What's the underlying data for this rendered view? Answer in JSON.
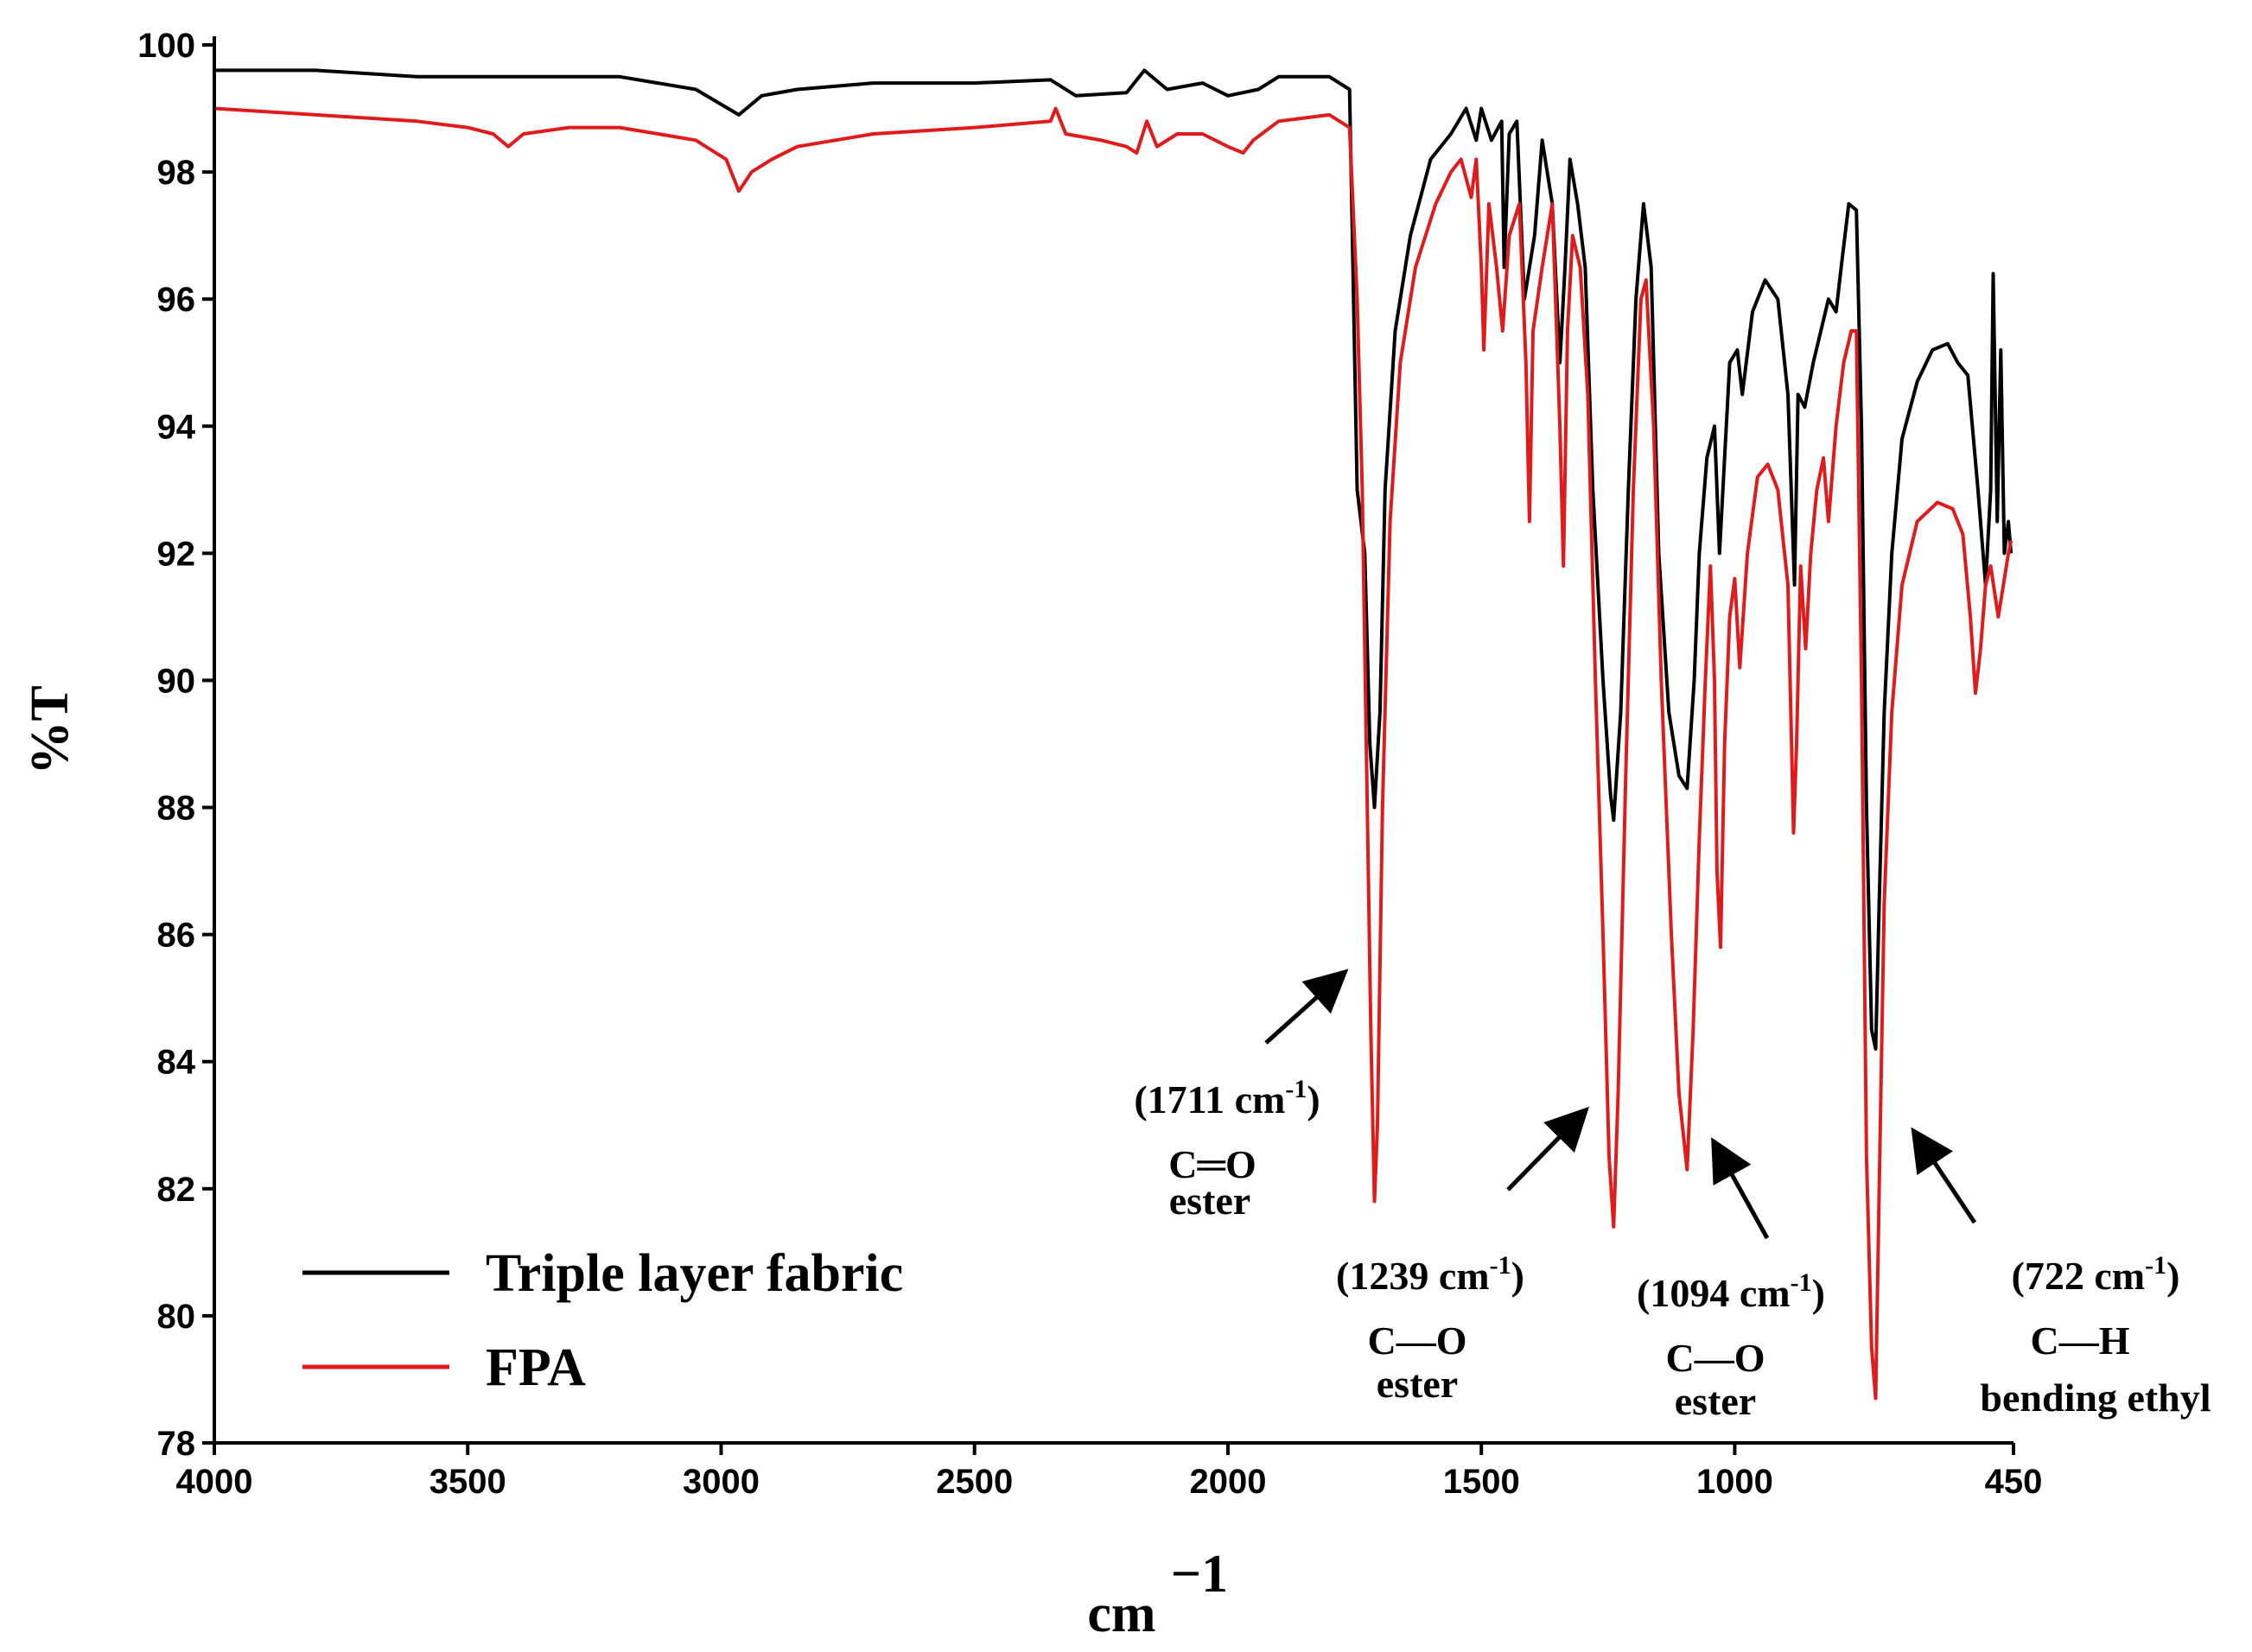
{
  "chart_data": {
    "type": "line",
    "xlabel": "cm",
    "xlabel_sup": "−1",
    "ylabel": "%T",
    "xlim": [
      4000,
      450
    ],
    "ylim": [
      78,
      100
    ],
    "x_ticks": [
      4000,
      3500,
      3000,
      2500,
      2000,
      1500,
      1000,
      450
    ],
    "x_tick_labels": [
      "4000",
      "3500",
      "3000",
      "2500",
      "2000",
      "1500",
      "1000",
      "450"
    ],
    "y_ticks": [
      78,
      80,
      82,
      84,
      86,
      88,
      90,
      92,
      94,
      96,
      98,
      100
    ],
    "y_tick_labels": [
      "78",
      "80",
      "82",
      "84",
      "86",
      "88",
      "90",
      "92",
      "94",
      "96",
      "98",
      "100"
    ],
    "grid": false,
    "legend_position": "bottom-left",
    "series": [
      {
        "name": "Triple layer fabric",
        "color": "#000000",
        "points": [
          [
            4000,
            99.6
          ],
          [
            3800,
            99.6
          ],
          [
            3600,
            99.5
          ],
          [
            3400,
            99.5
          ],
          [
            3200,
            99.5
          ],
          [
            3050,
            99.3
          ],
          [
            2965,
            98.9
          ],
          [
            2920,
            99.2
          ],
          [
            2850,
            99.3
          ],
          [
            2700,
            99.4
          ],
          [
            2500,
            99.4
          ],
          [
            2350,
            99.45
          ],
          [
            2300,
            99.2
          ],
          [
            2200,
            99.25
          ],
          [
            2165,
            99.6
          ],
          [
            2120,
            99.3
          ],
          [
            2050,
            99.4
          ],
          [
            2000,
            99.2
          ],
          [
            1940,
            99.3
          ],
          [
            1900,
            99.5
          ],
          [
            1800,
            99.5
          ],
          [
            1760,
            99.3
          ],
          [
            1745,
            93.0
          ],
          [
            1730,
            92.0
          ],
          [
            1720,
            89.0
          ],
          [
            1711,
            88.0
          ],
          [
            1700,
            89.5
          ],
          [
            1690,
            93.0
          ],
          [
            1670,
            95.5
          ],
          [
            1640,
            97.0
          ],
          [
            1600,
            98.2
          ],
          [
            1560,
            98.6
          ],
          [
            1530,
            99.0
          ],
          [
            1510,
            98.5
          ],
          [
            1500,
            99.0
          ],
          [
            1480,
            98.5
          ],
          [
            1460,
            98.8
          ],
          [
            1455,
            96.5
          ],
          [
            1445,
            98.6
          ],
          [
            1430,
            98.8
          ],
          [
            1415,
            96.0
          ],
          [
            1395,
            97.0
          ],
          [
            1380,
            98.5
          ],
          [
            1360,
            97.5
          ],
          [
            1345,
            95.0
          ],
          [
            1335,
            96.5
          ],
          [
            1325,
            98.2
          ],
          [
            1310,
            97.5
          ],
          [
            1295,
            96.5
          ],
          [
            1280,
            93.0
          ],
          [
            1260,
            90.0
          ],
          [
            1245,
            88.2
          ],
          [
            1239,
            87.8
          ],
          [
            1225,
            89.5
          ],
          [
            1210,
            93.0
          ],
          [
            1195,
            96.0
          ],
          [
            1180,
            97.5
          ],
          [
            1165,
            96.5
          ],
          [
            1150,
            92.0
          ],
          [
            1130,
            89.5
          ],
          [
            1110,
            88.5
          ],
          [
            1094,
            88.3
          ],
          [
            1080,
            90.0
          ],
          [
            1070,
            92.0
          ],
          [
            1055,
            93.5
          ],
          [
            1040,
            94.0
          ],
          [
            1030,
            92.0
          ],
          [
            1020,
            93.5
          ],
          [
            1010,
            95.0
          ],
          [
            995,
            95.2
          ],
          [
            985,
            94.5
          ],
          [
            965,
            95.8
          ],
          [
            940,
            96.3
          ],
          [
            915,
            96.0
          ],
          [
            895,
            94.5
          ],
          [
            882,
            91.5
          ],
          [
            875,
            94.5
          ],
          [
            862,
            94.3
          ],
          [
            845,
            95.0
          ],
          [
            830,
            95.5
          ],
          [
            815,
            96.0
          ],
          [
            800,
            95.8
          ],
          [
            790,
            96.5
          ],
          [
            775,
            97.5
          ],
          [
            760,
            97.4
          ],
          [
            750,
            94.0
          ],
          [
            740,
            88.0
          ],
          [
            730,
            84.5
          ],
          [
            722,
            84.2
          ],
          [
            715,
            86.5
          ],
          [
            705,
            89.5
          ],
          [
            690,
            92.0
          ],
          [
            670,
            93.8
          ],
          [
            640,
            94.7
          ],
          [
            610,
            95.2
          ],
          [
            580,
            95.3
          ],
          [
            560,
            95.0
          ],
          [
            540,
            94.8
          ],
          [
            520,
            93.0
          ],
          [
            505,
            91.5
          ],
          [
            495,
            93.0
          ],
          [
            490,
            96.4
          ],
          [
            482,
            92.5
          ],
          [
            475,
            95.2
          ],
          [
            468,
            92.0
          ],
          [
            460,
            92.5
          ],
          [
            455,
            92.0
          ]
        ]
      },
      {
        "name": "FPA",
        "color": "#e01b1b",
        "points": [
          [
            4000,
            99.0
          ],
          [
            3800,
            98.9
          ],
          [
            3600,
            98.8
          ],
          [
            3500,
            98.7
          ],
          [
            3450,
            98.6
          ],
          [
            3420,
            98.4
          ],
          [
            3390,
            98.6
          ],
          [
            3300,
            98.7
          ],
          [
            3200,
            98.7
          ],
          [
            3050,
            98.5
          ],
          [
            2990,
            98.2
          ],
          [
            2965,
            97.7
          ],
          [
            2940,
            98.0
          ],
          [
            2900,
            98.2
          ],
          [
            2850,
            98.4
          ],
          [
            2700,
            98.6
          ],
          [
            2500,
            98.7
          ],
          [
            2350,
            98.8
          ],
          [
            2340,
            99.0
          ],
          [
            2320,
            98.6
          ],
          [
            2250,
            98.5
          ],
          [
            2200,
            98.4
          ],
          [
            2180,
            98.3
          ],
          [
            2160,
            98.8
          ],
          [
            2140,
            98.4
          ],
          [
            2100,
            98.6
          ],
          [
            2050,
            98.6
          ],
          [
            2000,
            98.4
          ],
          [
            1970,
            98.3
          ],
          [
            1950,
            98.5
          ],
          [
            1900,
            98.8
          ],
          [
            1800,
            98.9
          ],
          [
            1760,
            98.7
          ],
          [
            1745,
            96.0
          ],
          [
            1735,
            93.0
          ],
          [
            1725,
            88.0
          ],
          [
            1718,
            84.5
          ],
          [
            1711,
            81.8
          ],
          [
            1705,
            83.0
          ],
          [
            1695,
            88.0
          ],
          [
            1680,
            92.5
          ],
          [
            1660,
            95.0
          ],
          [
            1630,
            96.5
          ],
          [
            1590,
            97.5
          ],
          [
            1560,
            98.0
          ],
          [
            1540,
            98.2
          ],
          [
            1520,
            97.6
          ],
          [
            1510,
            98.2
          ],
          [
            1500,
            96.5
          ],
          [
            1495,
            95.2
          ],
          [
            1485,
            97.5
          ],
          [
            1470,
            96.5
          ],
          [
            1458,
            95.5
          ],
          [
            1445,
            97.0
          ],
          [
            1425,
            97.5
          ],
          [
            1412,
            95.0
          ],
          [
            1405,
            92.5
          ],
          [
            1398,
            95.5
          ],
          [
            1380,
            96.5
          ],
          [
            1360,
            97.5
          ],
          [
            1345,
            94.0
          ],
          [
            1338,
            91.8
          ],
          [
            1330,
            95.5
          ],
          [
            1320,
            97.0
          ],
          [
            1305,
            96.5
          ],
          [
            1290,
            94.5
          ],
          [
            1275,
            90.0
          ],
          [
            1260,
            86.0
          ],
          [
            1248,
            82.5
          ],
          [
            1239,
            81.4
          ],
          [
            1230,
            83.5
          ],
          [
            1215,
            88.5
          ],
          [
            1200,
            93.0
          ],
          [
            1185,
            96.0
          ],
          [
            1175,
            96.3
          ],
          [
            1160,
            94.0
          ],
          [
            1145,
            90.0
          ],
          [
            1125,
            86.0
          ],
          [
            1110,
            83.5
          ],
          [
            1094,
            82.3
          ],
          [
            1082,
            84.5
          ],
          [
            1070,
            87.5
          ],
          [
            1058,
            90.0
          ],
          [
            1048,
            91.8
          ],
          [
            1040,
            90.0
          ],
          [
            1035,
            87.0
          ],
          [
            1028,
            85.8
          ],
          [
            1020,
            89.0
          ],
          [
            1010,
            91.0
          ],
          [
            1000,
            91.6
          ],
          [
            990,
            90.2
          ],
          [
            975,
            92.0
          ],
          [
            955,
            93.2
          ],
          [
            935,
            93.4
          ],
          [
            915,
            93.0
          ],
          [
            895,
            91.5
          ],
          [
            884,
            87.6
          ],
          [
            878,
            89.0
          ],
          [
            870,
            91.8
          ],
          [
            860,
            90.5
          ],
          [
            850,
            92.0
          ],
          [
            838,
            93.0
          ],
          [
            825,
            93.5
          ],
          [
            815,
            92.5
          ],
          [
            800,
            94.0
          ],
          [
            785,
            95.0
          ],
          [
            770,
            95.5
          ],
          [
            760,
            95.5
          ],
          [
            750,
            90.0
          ],
          [
            740,
            82.5
          ],
          [
            730,
            79.5
          ],
          [
            722,
            78.7
          ],
          [
            715,
            82.0
          ],
          [
            705,
            86.5
          ],
          [
            690,
            89.5
          ],
          [
            670,
            91.5
          ],
          [
            640,
            92.5
          ],
          [
            600,
            92.8
          ],
          [
            570,
            92.7
          ],
          [
            550,
            92.3
          ],
          [
            535,
            91.0
          ],
          [
            525,
            89.8
          ],
          [
            515,
            90.5
          ],
          [
            505,
            91.5
          ],
          [
            495,
            91.8
          ],
          [
            480,
            91.0
          ],
          [
            470,
            91.5
          ],
          [
            460,
            92.0
          ],
          [
            455,
            92.2
          ]
        ]
      }
    ],
    "annotations": [
      {
        "wavenumber": "(1711 cm",
        "sup": "-1",
        "close": ")",
        "bond": "C═O",
        "label": "ester"
      },
      {
        "wavenumber": "(1239 cm",
        "sup": "-1",
        "close": ")",
        "bond": "C—O",
        "label": "ester"
      },
      {
        "wavenumber": "(1094 cm",
        "sup": "-1",
        "close": ")",
        "bond": "C—O",
        "label": "ester"
      },
      {
        "wavenumber": "(722 cm",
        "sup": "-1",
        "close": ")",
        "bond": "C—H",
        "label": "bending ethyl"
      }
    ]
  }
}
